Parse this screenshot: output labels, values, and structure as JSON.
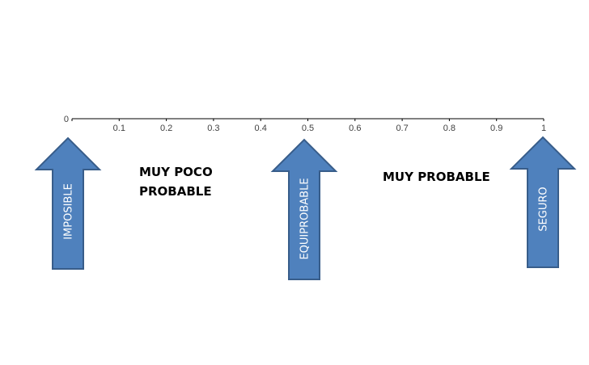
{
  "scale": {
    "min": 0,
    "max": 1,
    "ticks": [
      {
        "value": 0,
        "label": "0"
      },
      {
        "value": 0.1,
        "label": "0.1"
      },
      {
        "value": 0.2,
        "label": "0.2"
      },
      {
        "value": 0.3,
        "label": "0.3"
      },
      {
        "value": 0.4,
        "label": "0.4"
      },
      {
        "value": 0.5,
        "label": "0.5"
      },
      {
        "value": 0.6,
        "label": "0.6"
      },
      {
        "value": 0.7,
        "label": "0.7"
      },
      {
        "value": 0.8,
        "label": "0.8"
      },
      {
        "value": 0.9,
        "label": "0.9"
      },
      {
        "value": 1,
        "label": "1"
      }
    ]
  },
  "arrows": [
    {
      "label": "IMPOSIBLE",
      "value": 0
    },
    {
      "label": "EQUIPROBABLE",
      "value": 0.5
    },
    {
      "label": "SEGURO",
      "value": 1
    }
  ],
  "regions": {
    "unlikely": {
      "line1": "MUY POCO",
      "line2": "PROBABLE"
    },
    "likely": {
      "line1": "MUY PROBABLE"
    }
  },
  "colors": {
    "arrow_fill": "#4f81bd",
    "arrow_stroke": "#385d8a",
    "axis": "#000000"
  }
}
